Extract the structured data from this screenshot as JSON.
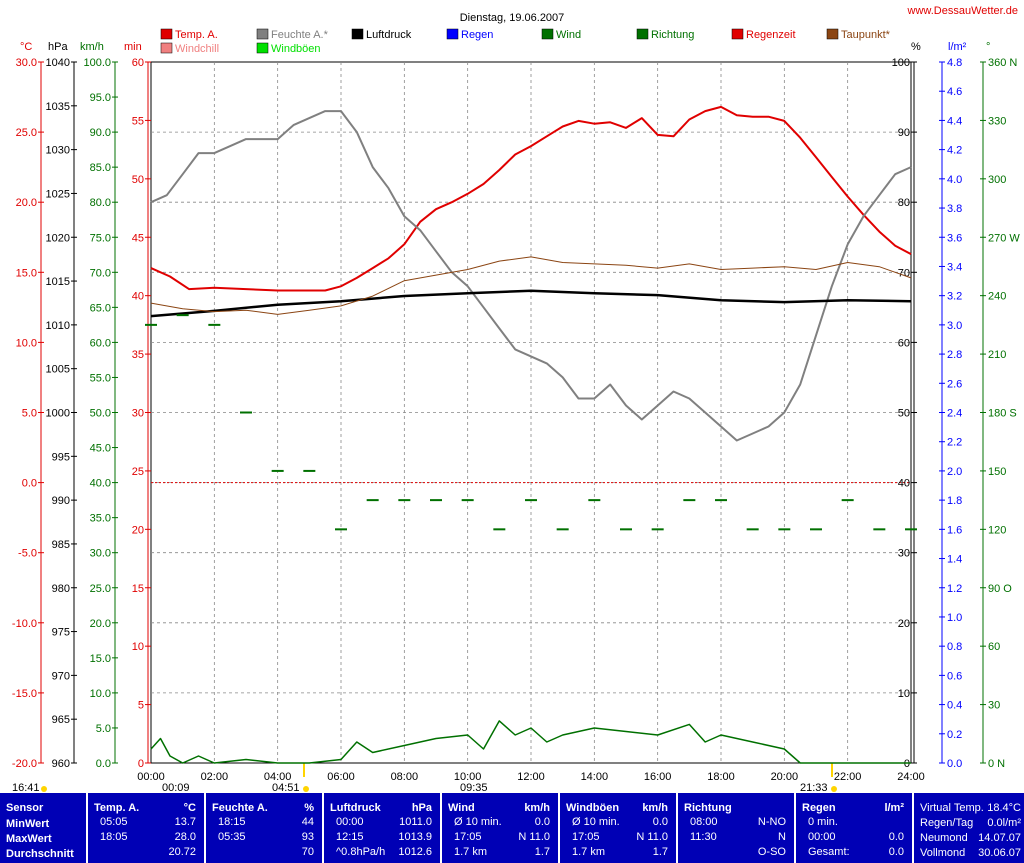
{
  "title": "Dienstag, 19.06.2007",
  "site": "www.DessauWetter.de",
  "colors": {
    "temp": "#e00000",
    "windchill": "#f08080",
    "humidity": "#808080",
    "windboeen": "#00e000",
    "pressure": "#000000",
    "rain": "#0000ff",
    "wind": "#007000",
    "direction": "#007000",
    "regenzeit": "#e00000",
    "taupunkt": "#8b4513",
    "panel_bg": "#0000b5"
  },
  "legend": [
    {
      "label": "Temp. A.",
      "color": "#e00000"
    },
    {
      "label": "Windchill",
      "color": "#f08080"
    },
    {
      "label": "Feuchte A.*",
      "color": "#808080"
    },
    {
      "label": "Windböen",
      "color": "#00e000"
    },
    {
      "label": "Luftdruck",
      "color": "#000000"
    },
    {
      "label": "Regen",
      "color": "#0000ff"
    },
    {
      "label": "Wind",
      "color": "#007000"
    },
    {
      "label": "Richtung",
      "color": "#007000"
    },
    {
      "label": "Regenzeit",
      "color": "#e00000"
    },
    {
      "label": "Taupunkt*",
      "color": "#8b4513"
    }
  ],
  "axis_units": {
    "temp": "°C",
    "pressure": "hPa",
    "wind": "km/h",
    "minutes": "min",
    "humidity": "%",
    "rain": "l/m²",
    "direction": "°"
  },
  "axis_ticks": {
    "temp": [
      "30.0",
      "25.0",
      "20.0",
      "15.0",
      "10.0",
      "5.0",
      "0.0",
      "-5.0",
      "-10.0",
      "-15.0",
      "-20.0"
    ],
    "pressure": [
      "1040",
      "1035",
      "1030",
      "1025",
      "1020",
      "1015",
      "1010",
      "1005",
      "1000",
      "995",
      "990",
      "985",
      "980",
      "975",
      "970",
      "965",
      "960"
    ],
    "wind": [
      "100.0",
      "95.0",
      "90.0",
      "85.0",
      "80.0",
      "75.0",
      "70.0",
      "65.0",
      "60.0",
      "55.0",
      "50.0",
      "45.0",
      "40.0",
      "35.0",
      "30.0",
      "25.0",
      "20.0",
      "15.0",
      "10.0",
      "5.0",
      "0.0"
    ],
    "minutes": [
      "60",
      "55",
      "50",
      "45",
      "40",
      "35",
      "30",
      "25",
      "20",
      "15",
      "10",
      "5",
      "0"
    ],
    "humidity": [
      "100",
      "90",
      "80",
      "70",
      "60",
      "50",
      "40",
      "30",
      "20",
      "10",
      "0"
    ],
    "rain": [
      "4.8",
      "4.6",
      "4.4",
      "4.2",
      "4.0",
      "3.8",
      "3.6",
      "3.4",
      "3.2",
      "3.0",
      "2.8",
      "2.6",
      "2.4",
      "2.2",
      "2.0",
      "1.8",
      "1.6",
      "1.4",
      "1.2",
      "1.0",
      "0.8",
      "0.6",
      "0.4",
      "0.2",
      "0.0"
    ],
    "direction": [
      "360 N",
      "330",
      "300",
      "270 W",
      "240",
      "210",
      "180 S",
      "150",
      "120",
      "90 O",
      "60",
      "30",
      "0 N"
    ],
    "time": [
      "00:00",
      "02:00",
      "04:00",
      "06:00",
      "08:00",
      "10:00",
      "12:00",
      "14:00",
      "16:00",
      "18:00",
      "20:00",
      "22:00",
      "24:00"
    ]
  },
  "sun_moon": {
    "moon_set": "16:41",
    "moon_rise_mark": "00:09",
    "sunrise": "04:51",
    "moon_mark": "09:35",
    "sunset": "21:33"
  },
  "chart_data": {
    "type": "line",
    "title": "Dienstag, 19.06.2007",
    "x_range_hours": [
      0,
      24
    ],
    "series": [
      {
        "name": "Temp. A.",
        "axis": "temp",
        "unit": "°C",
        "points": [
          [
            0,
            15.3
          ],
          [
            0.6,
            14.7
          ],
          [
            1.2,
            13.8
          ],
          [
            2,
            13.9
          ],
          [
            3,
            13.8
          ],
          [
            4,
            13.7
          ],
          [
            4.8,
            13.7
          ],
          [
            5.5,
            13.7
          ],
          [
            6,
            14.0
          ],
          [
            6.5,
            14.6
          ],
          [
            7,
            15.3
          ],
          [
            7.5,
            16.0
          ],
          [
            8,
            17.0
          ],
          [
            8.5,
            18.6
          ],
          [
            9,
            19.5
          ],
          [
            9.5,
            20.0
          ],
          [
            10,
            20.6
          ],
          [
            10.5,
            21.3
          ],
          [
            11,
            22.3
          ],
          [
            11.5,
            23.4
          ],
          [
            12,
            24.0
          ],
          [
            12.5,
            24.7
          ],
          [
            13,
            25.4
          ],
          [
            13.5,
            25.8
          ],
          [
            14,
            25.6
          ],
          [
            14.5,
            25.7
          ],
          [
            15,
            25.3
          ],
          [
            15.5,
            26.0
          ],
          [
            16,
            24.8
          ],
          [
            16.5,
            24.7
          ],
          [
            17,
            25.9
          ],
          [
            17.5,
            26.5
          ],
          [
            18,
            26.8
          ],
          [
            18.5,
            26.2
          ],
          [
            19,
            26.1
          ],
          [
            19.5,
            26.1
          ],
          [
            20,
            25.8
          ],
          [
            20.5,
            24.6
          ],
          [
            21,
            23.2
          ],
          [
            21.5,
            21.8
          ],
          [
            22,
            20.4
          ],
          [
            22.5,
            19.1
          ],
          [
            23,
            17.9
          ],
          [
            23.5,
            16.9
          ],
          [
            24,
            16.3
          ]
        ]
      },
      {
        "name": "Feuchte A.*",
        "axis": "humidity",
        "unit": "%",
        "points": [
          [
            0,
            80
          ],
          [
            0.5,
            81
          ],
          [
            1,
            84
          ],
          [
            1.5,
            87
          ],
          [
            2,
            87
          ],
          [
            2.5,
            88
          ],
          [
            3,
            89
          ],
          [
            3.5,
            89
          ],
          [
            4,
            89
          ],
          [
            4.5,
            91
          ],
          [
            5,
            92
          ],
          [
            5.5,
            93
          ],
          [
            6,
            93
          ],
          [
            6.5,
            90
          ],
          [
            7,
            85
          ],
          [
            7.5,
            82
          ],
          [
            8,
            78
          ],
          [
            8.5,
            76
          ],
          [
            9,
            73
          ],
          [
            9.5,
            70
          ],
          [
            10,
            68
          ],
          [
            10.5,
            65
          ],
          [
            11,
            62
          ],
          [
            11.5,
            59
          ],
          [
            12,
            58
          ],
          [
            12.5,
            57
          ],
          [
            13,
            55
          ],
          [
            13.5,
            52
          ],
          [
            14,
            52
          ],
          [
            14.5,
            54
          ],
          [
            15,
            51
          ],
          [
            15.5,
            49
          ],
          [
            16,
            51
          ],
          [
            16.5,
            53
          ],
          [
            17,
            52
          ],
          [
            17.5,
            50
          ],
          [
            18,
            48
          ],
          [
            18.5,
            46
          ],
          [
            19,
            47
          ],
          [
            19.5,
            48
          ],
          [
            20,
            50
          ],
          [
            20.5,
            54
          ],
          [
            21,
            61
          ],
          [
            21.5,
            68
          ],
          [
            22,
            74
          ],
          [
            22.5,
            78
          ],
          [
            23,
            81
          ],
          [
            23.5,
            84
          ],
          [
            24,
            85
          ]
        ]
      },
      {
        "name": "Luftdruck",
        "axis": "pressure",
        "unit": "hPa",
        "points": [
          [
            0,
            1011.0
          ],
          [
            2,
            1011.6
          ],
          [
            4,
            1012.3
          ],
          [
            6,
            1012.7
          ],
          [
            8,
            1013.3
          ],
          [
            10,
            1013.6
          ],
          [
            12,
            1013.9
          ],
          [
            14,
            1013.6
          ],
          [
            16,
            1013.4
          ],
          [
            18,
            1012.8
          ],
          [
            20,
            1012.6
          ],
          [
            22,
            1012.8
          ],
          [
            24,
            1012.7
          ]
        ]
      },
      {
        "name": "Taupunkt*",
        "axis": "temp",
        "unit": "°C",
        "points": [
          [
            0,
            12.8
          ],
          [
            1,
            12.4
          ],
          [
            2,
            12.2
          ],
          [
            3,
            12.3
          ],
          [
            4,
            12.0
          ],
          [
            5,
            12.3
          ],
          [
            6,
            12.6
          ],
          [
            7,
            13.3
          ],
          [
            8,
            14.4
          ],
          [
            9,
            14.8
          ],
          [
            10,
            15.2
          ],
          [
            11,
            15.8
          ],
          [
            12,
            16.1
          ],
          [
            13,
            15.7
          ],
          [
            14,
            15.6
          ],
          [
            15,
            15.5
          ],
          [
            16,
            15.3
          ],
          [
            17,
            15.6
          ],
          [
            18,
            15.2
          ],
          [
            19,
            15.3
          ],
          [
            20,
            15.4
          ],
          [
            21,
            15.2
          ],
          [
            22,
            15.7
          ],
          [
            23,
            15.4
          ],
          [
            24,
            14.6
          ]
        ]
      },
      {
        "name": "Windböen",
        "axis": "wind",
        "unit": "km/h",
        "points": [
          [
            0,
            2
          ],
          [
            0.3,
            3.5
          ],
          [
            0.6,
            1
          ],
          [
            1,
            0
          ],
          [
            1.5,
            1
          ],
          [
            2,
            0
          ],
          [
            3,
            0.5
          ],
          [
            4,
            0
          ],
          [
            5,
            0
          ],
          [
            6,
            0.5
          ],
          [
            6.5,
            3
          ],
          [
            7,
            1.5
          ],
          [
            8,
            2.5
          ],
          [
            9,
            3.5
          ],
          [
            10,
            4
          ],
          [
            10.5,
            2
          ],
          [
            11,
            6
          ],
          [
            11.5,
            4
          ],
          [
            12,
            5
          ],
          [
            12.5,
            3
          ],
          [
            13,
            4
          ],
          [
            14,
            5
          ],
          [
            15,
            4.5
          ],
          [
            16,
            4
          ],
          [
            17,
            5.5
          ],
          [
            17.5,
            3
          ],
          [
            18,
            4
          ],
          [
            19,
            3
          ],
          [
            20,
            2
          ],
          [
            20.5,
            0
          ],
          [
            24,
            0
          ]
        ]
      },
      {
        "name": "Richtung",
        "axis": "direction",
        "unit": "°",
        "points": [
          [
            0,
            225
          ],
          [
            1,
            230
          ],
          [
            2,
            225
          ],
          [
            3,
            180
          ],
          [
            4,
            150
          ],
          [
            5,
            150
          ],
          [
            6,
            120
          ],
          [
            7,
            135
          ],
          [
            8,
            135
          ],
          [
            9,
            135
          ],
          [
            10,
            135
          ],
          [
            11,
            120
          ],
          [
            12,
            135
          ],
          [
            13,
            120
          ],
          [
            14,
            135
          ],
          [
            15,
            120
          ],
          [
            16,
            120
          ],
          [
            17,
            135
          ],
          [
            18,
            135
          ],
          [
            19,
            120
          ],
          [
            20,
            120
          ],
          [
            21,
            120
          ],
          [
            22,
            135
          ],
          [
            23,
            120
          ],
          [
            24,
            120
          ]
        ]
      }
    ],
    "reference_line": {
      "axis": "temp",
      "value": 0.0,
      "style": "dashed",
      "color": "#e00000"
    }
  },
  "bottom": {
    "sensor": {
      "title": "Sensor",
      "rows": [
        "MinWert",
        "MaxWert",
        "Durchschnitt"
      ]
    },
    "temp": {
      "title": "Temp. A.",
      "unit": "°C",
      "rows": [
        [
          "05:05",
          "13.7"
        ],
        [
          "18:05",
          "28.0"
        ],
        [
          "",
          "20.72"
        ]
      ]
    },
    "feuchte": {
      "title": "Feuchte A.",
      "unit": "%",
      "rows": [
        [
          "18:15",
          "44"
        ],
        [
          "05:35",
          "93"
        ],
        [
          "",
          "70"
        ]
      ]
    },
    "luftdruck": {
      "title": "Luftdruck",
      "unit": "hPa",
      "rows": [
        [
          "00:00",
          "1011.0"
        ],
        [
          "12:15",
          "1013.9"
        ],
        [
          "^0.8hPa/h",
          "1012.6"
        ]
      ]
    },
    "wind": {
      "title": "Wind",
      "unit": "km/h",
      "rows": [
        [
          "Ø 10 min.",
          "0.0"
        ],
        [
          "17:05",
          "N 11.0"
        ],
        [
          "1.7 km",
          "1.7"
        ]
      ]
    },
    "windboeen": {
      "title": "Windböen",
      "unit": "km/h",
      "rows": [
        [
          "Ø 10 min.",
          "0.0"
        ],
        [
          "17:05",
          "N 11.0"
        ],
        [
          "1.7 km",
          "1.7"
        ]
      ]
    },
    "richtung": {
      "title": "Richtung",
      "unit": "",
      "rows": [
        [
          "08:00",
          "N-NO"
        ],
        [
          "11:30",
          "N"
        ],
        [
          "",
          "O-SO"
        ]
      ]
    },
    "regen": {
      "title": "Regen",
      "unit": "l/m²",
      "rows": [
        [
          "0 min.",
          ""
        ],
        [
          "00:00",
          "0.0"
        ],
        [
          "Gesamt:",
          "0.0"
        ]
      ]
    },
    "info": {
      "rows": [
        [
          "Virtual Temp.",
          "18.4°C"
        ],
        [
          "Regen/Tag",
          "0.0l/m²"
        ],
        [
          "Neumond",
          "14.07.07"
        ],
        [
          "Vollmond",
          "30.06.07"
        ]
      ]
    }
  }
}
